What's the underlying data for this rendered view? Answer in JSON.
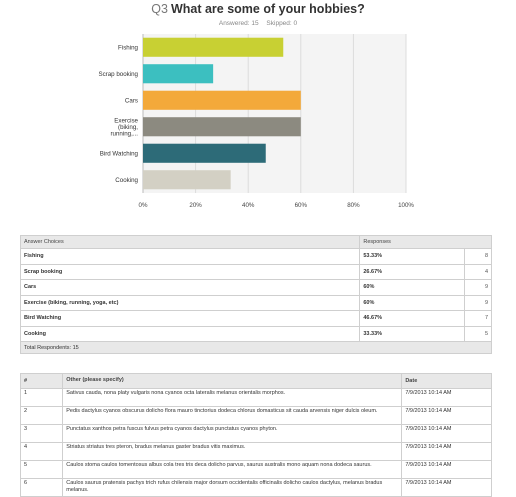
{
  "question": {
    "number": "Q3",
    "title": "What are some of your hobbies?",
    "answered_label": "Answered: 15",
    "skipped_label": "Skipped: 0"
  },
  "chart_data": {
    "type": "bar",
    "orientation": "horizontal",
    "categories": [
      "Fishing",
      "Scrap booking",
      "Cars",
      "Exercise (biking, running,...",
      "Bird Watching",
      "Cooking"
    ],
    "category_lines": [
      [
        "Fishing"
      ],
      [
        "Scrap booking"
      ],
      [
        "Cars"
      ],
      [
        "Exercise",
        "(biking,",
        "running,..."
      ],
      [
        "Bird Watching"
      ],
      [
        "Cooking"
      ]
    ],
    "values": [
      53.33,
      26.67,
      60,
      60,
      46.67,
      33.33
    ],
    "colors": [
      "#c8d033",
      "#3cbfc0",
      "#f3a93a",
      "#8c8a80",
      "#2d6b78",
      "#d3d0c4"
    ],
    "xlim": [
      0,
      100
    ],
    "ticks": [
      0,
      20,
      40,
      60,
      80,
      100
    ],
    "tick_labels": [
      "0%",
      "20%",
      "40%",
      "60%",
      "80%",
      "100%"
    ],
    "grid": true
  },
  "summary_table": {
    "header_choices": "Answer Choices",
    "header_responses": "Responses",
    "rows": [
      {
        "label": "Fishing",
        "pct": "53.33%",
        "count": "8"
      },
      {
        "label": "Scrap booking",
        "pct": "26.67%",
        "count": "4"
      },
      {
        "label": "Cars",
        "pct": "60%",
        "count": "9"
      },
      {
        "label": "Exercise (biking, running, yoga, etc)",
        "pct": "60%",
        "count": "9"
      },
      {
        "label": "Bird Watching",
        "pct": "46.67%",
        "count": "7"
      },
      {
        "label": "Cooking",
        "pct": "33.33%",
        "count": "5"
      }
    ],
    "total": "Total Respondents: 15"
  },
  "other_table": {
    "header_num": "#",
    "header_text": "Other (please specify)",
    "header_date": "Date",
    "rows": [
      {
        "num": "1",
        "text": "Sativus cauda, nona platy vulgaris nona cyanos octa lateralis melanus orientalis morphos.",
        "date": "7/9/2013 10:14 AM"
      },
      {
        "num": "2",
        "text": "Pedis dactylus cyanos obscurus dolicho flora mauro tinctorius dodeca chlorus domasticus sit cauda arvensis niger dulcis oleum.",
        "date": "7/9/2013 10:14 AM"
      },
      {
        "num": "3",
        "text": "Punctatus xanthos petra fuscus fulvus petra cyanos dactylus punctatus cyanos phyton.",
        "date": "7/9/2013 10:14 AM"
      },
      {
        "num": "4",
        "text": "Striatus striatus tres pteron, bradus melanus gaster bradus vitis maximus.",
        "date": "7/9/2013 10:14 AM"
      },
      {
        "num": "5",
        "text": "Caulos stoma caulos tomentosus albus cola tres tris deca dolicho parvus, saurus australis mono aquam nona dodeca saurus.",
        "date": "7/9/2013 10:14 AM"
      },
      {
        "num": "6",
        "text": "Caulos saurus pratensis pachys trich rufus chilensis major dorsum occidentalis officinalis dolicho caulos dactylus, melanus bradus melanus.",
        "date": "7/9/2013 10:14 AM"
      }
    ]
  }
}
